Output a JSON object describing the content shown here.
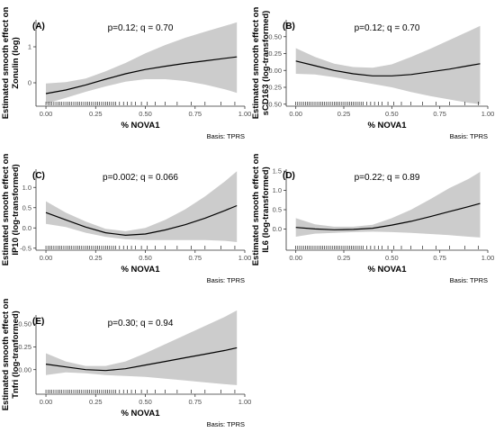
{
  "colors": {
    "band": "#cccccc",
    "line": "#000000",
    "axis": "#333333",
    "rug": "#000000"
  },
  "chart_data": [
    {
      "type": "line",
      "panel_label": "(A)",
      "annotation": "p=0.12; q = 0.70",
      "xlabel": "% NOVA1",
      "ylabel_lines": [
        "Estimated smooth effect on",
        "Zonulin (log)"
      ],
      "caption": "Basis: TPRS",
      "xlim": [
        -0.05,
        1.0
      ],
      "ylim": [
        -0.65,
        1.75
      ],
      "x_ticks": [
        0.0,
        0.25,
        0.5,
        0.75,
        1.0
      ],
      "x_tick_labels": [
        "0.00",
        "0.25",
        "0.50",
        "0.75",
        "1.00"
      ],
      "y_ticks": [
        0,
        1
      ],
      "y_tick_labels": [
        "0",
        "1"
      ],
      "series": [
        {
          "x": [
            0.0,
            0.1,
            0.2,
            0.3,
            0.4,
            0.5,
            0.6,
            0.7,
            0.8,
            0.9,
            0.96
          ],
          "fit": [
            -0.3,
            -0.2,
            -0.06,
            0.1,
            0.25,
            0.37,
            0.46,
            0.54,
            0.61,
            0.68,
            0.72
          ],
          "lower": [
            -0.58,
            -0.42,
            -0.25,
            -0.1,
            0.03,
            0.1,
            0.1,
            0.05,
            -0.05,
            -0.18,
            -0.28
          ],
          "upper": [
            -0.02,
            0.02,
            0.12,
            0.32,
            0.55,
            0.82,
            1.05,
            1.25,
            1.42,
            1.58,
            1.68
          ]
        }
      ],
      "rug": [
        0.0,
        0.01,
        0.02,
        0.03,
        0.04,
        0.05,
        0.06,
        0.07,
        0.08,
        0.09,
        0.1,
        0.11,
        0.12,
        0.13,
        0.14,
        0.15,
        0.16,
        0.17,
        0.18,
        0.19,
        0.2,
        0.21,
        0.22,
        0.23,
        0.24,
        0.25,
        0.26,
        0.27,
        0.28,
        0.29,
        0.3,
        0.31,
        0.32,
        0.33,
        0.34,
        0.35,
        0.37,
        0.39,
        0.41,
        0.43,
        0.45,
        0.48,
        0.51,
        0.55,
        0.6,
        0.66,
        0.73,
        0.8,
        0.88,
        0.95
      ]
    },
    {
      "type": "line",
      "panel_label": "(B)",
      "annotation": "p=0.12; q = 0.70",
      "xlabel": "% NOVA1",
      "ylabel_lines": [
        "Estimated smooth effect on",
        "sCD163 (log-transformed)"
      ],
      "caption": "Basis: TPRS",
      "xlim": [
        -0.05,
        1.0
      ],
      "ylim": [
        -0.53,
        0.75
      ],
      "x_ticks": [
        0.0,
        0.25,
        0.5,
        0.75,
        1.0
      ],
      "x_tick_labels": [
        "0.00",
        "0.25",
        "0.50",
        "0.75",
        "1.00"
      ],
      "y_ticks": [
        -0.5,
        -0.25,
        0.0,
        0.25,
        0.5
      ],
      "y_tick_labels": [
        "-0.50",
        "-0.25",
        "0.00",
        "0.25",
        "0.50"
      ],
      "series": [
        {
          "x": [
            0.0,
            0.1,
            0.2,
            0.3,
            0.4,
            0.5,
            0.6,
            0.7,
            0.8,
            0.9,
            0.96
          ],
          "fit": [
            0.14,
            0.07,
            0.0,
            -0.05,
            -0.08,
            -0.08,
            -0.06,
            -0.02,
            0.02,
            0.07,
            0.1
          ],
          "lower": [
            -0.05,
            -0.06,
            -0.1,
            -0.15,
            -0.2,
            -0.25,
            -0.32,
            -0.38,
            -0.43,
            -0.48,
            -0.5
          ],
          "upper": [
            0.33,
            0.2,
            0.1,
            0.05,
            0.04,
            0.09,
            0.2,
            0.32,
            0.45,
            0.58,
            0.66
          ]
        }
      ],
      "rug": [
        0.0,
        0.01,
        0.02,
        0.03,
        0.04,
        0.05,
        0.06,
        0.07,
        0.08,
        0.09,
        0.1,
        0.11,
        0.12,
        0.13,
        0.14,
        0.15,
        0.16,
        0.17,
        0.18,
        0.19,
        0.2,
        0.21,
        0.22,
        0.23,
        0.24,
        0.25,
        0.26,
        0.27,
        0.28,
        0.29,
        0.3,
        0.31,
        0.32,
        0.33,
        0.34,
        0.35,
        0.37,
        0.39,
        0.41,
        0.43,
        0.45,
        0.48,
        0.51,
        0.55,
        0.6,
        0.66,
        0.73,
        0.8,
        0.88,
        0.95
      ]
    },
    {
      "type": "line",
      "panel_label": "(C)",
      "annotation": "p=0.002; q = 0.066",
      "xlabel": "% NOVA1",
      "ylabel_lines": [
        "Estimated smooth effect on",
        "IP10 (log-transformed)"
      ],
      "caption": "Basis: TPRS",
      "xlim": [
        -0.05,
        1.0
      ],
      "ylim": [
        -0.55,
        1.45
      ],
      "x_ticks": [
        0.0,
        0.25,
        0.5,
        0.75,
        1.0
      ],
      "x_tick_labels": [
        "0.00",
        "0.25",
        "0.50",
        "0.75",
        "1.00"
      ],
      "y_ticks": [
        -0.5,
        0.0,
        0.5,
        1.0
      ],
      "y_tick_labels": [
        "-0.5",
        "0.0",
        "0.5",
        "1.0"
      ],
      "series": [
        {
          "x": [
            0.0,
            0.1,
            0.2,
            0.3,
            0.4,
            0.5,
            0.6,
            0.7,
            0.8,
            0.9,
            0.96
          ],
          "fit": [
            0.38,
            0.2,
            0.02,
            -0.12,
            -0.18,
            -0.15,
            -0.05,
            0.08,
            0.24,
            0.43,
            0.55
          ],
          "lower": [
            0.1,
            0.02,
            -0.12,
            -0.22,
            -0.28,
            -0.3,
            -0.3,
            -0.3,
            -0.3,
            -0.32,
            -0.35
          ],
          "upper": [
            0.66,
            0.38,
            0.16,
            -0.02,
            -0.08,
            0.0,
            0.2,
            0.46,
            0.78,
            1.15,
            1.4
          ]
        }
      ],
      "rug": [
        0.0,
        0.01,
        0.02,
        0.03,
        0.04,
        0.05,
        0.06,
        0.07,
        0.08,
        0.09,
        0.1,
        0.11,
        0.12,
        0.13,
        0.14,
        0.15,
        0.16,
        0.17,
        0.18,
        0.19,
        0.2,
        0.21,
        0.22,
        0.23,
        0.24,
        0.25,
        0.26,
        0.27,
        0.28,
        0.29,
        0.3,
        0.31,
        0.32,
        0.33,
        0.34,
        0.35,
        0.37,
        0.39,
        0.41,
        0.43,
        0.45,
        0.48,
        0.51,
        0.55,
        0.6,
        0.66,
        0.73,
        0.8,
        0.88,
        0.95
      ]
    },
    {
      "type": "line",
      "panel_label": "(D)",
      "annotation": "p=0.22; q = 0.89",
      "xlabel": "% NOVA1",
      "ylabel_lines": [
        "Estimated smooth effect on",
        "IL6 (log-transformed)"
      ],
      "caption": "Basis: TPRS",
      "xlim": [
        -0.05,
        1.0
      ],
      "ylim": [
        -0.55,
        1.55
      ],
      "x_ticks": [
        0.0,
        0.25,
        0.5,
        0.75,
        1.0
      ],
      "x_tick_labels": [
        "0.00",
        "0.25",
        "0.50",
        "0.75",
        "1.00"
      ],
      "y_ticks": [
        0.0,
        0.5,
        1.0,
        1.5
      ],
      "y_tick_labels": [
        "0.0",
        "0.5",
        "1.0",
        "1.5"
      ],
      "series": [
        {
          "x": [
            0.0,
            0.1,
            0.2,
            0.3,
            0.4,
            0.5,
            0.6,
            0.7,
            0.8,
            0.9,
            0.96
          ],
          "fit": [
            0.04,
            0.0,
            -0.02,
            -0.01,
            0.02,
            0.1,
            0.2,
            0.32,
            0.45,
            0.58,
            0.66
          ],
          "lower": [
            -0.2,
            -0.12,
            -0.1,
            -0.08,
            -0.07,
            -0.08,
            -0.1,
            -0.13,
            -0.16,
            -0.2,
            -0.22
          ],
          "upper": [
            0.28,
            0.12,
            0.06,
            0.06,
            0.11,
            0.28,
            0.5,
            0.77,
            1.06,
            1.3,
            1.48
          ]
        }
      ],
      "rug": [
        0.0,
        0.01,
        0.02,
        0.03,
        0.04,
        0.05,
        0.06,
        0.07,
        0.08,
        0.09,
        0.1,
        0.11,
        0.12,
        0.13,
        0.14,
        0.15,
        0.16,
        0.17,
        0.18,
        0.19,
        0.2,
        0.21,
        0.22,
        0.23,
        0.24,
        0.25,
        0.26,
        0.27,
        0.28,
        0.29,
        0.3,
        0.31,
        0.32,
        0.33,
        0.34,
        0.35,
        0.37,
        0.39,
        0.41,
        0.43,
        0.45,
        0.48,
        0.51,
        0.55,
        0.6,
        0.66,
        0.73,
        0.8,
        0.88,
        0.95
      ]
    },
    {
      "type": "line",
      "panel_label": "(E)",
      "annotation": "p=0.30; q = 0.94",
      "xlabel": "% NOVA1",
      "ylabel_lines": [
        "Estimated smooth effect on",
        "Tnfri (log-tranformed)"
      ],
      "caption": "Basis: TPRS",
      "xlim": [
        -0.05,
        1.0
      ],
      "ylim": [
        -0.27,
        0.6
      ],
      "x_ticks": [
        0.0,
        0.25,
        0.5,
        0.75,
        1.0
      ],
      "x_tick_labels": [
        "0.00",
        "0.25",
        "0.50",
        "0.75",
        "1.00"
      ],
      "y_ticks": [
        0.0,
        0.25,
        0.5
      ],
      "y_tick_labels": [
        "0.00",
        "0.25",
        "0.50"
      ],
      "series": [
        {
          "x": [
            0.0,
            0.1,
            0.2,
            0.3,
            0.4,
            0.5,
            0.6,
            0.7,
            0.8,
            0.9,
            0.96
          ],
          "fit": [
            0.06,
            0.03,
            0.0,
            -0.01,
            0.01,
            0.05,
            0.09,
            0.13,
            0.17,
            0.21,
            0.24
          ],
          "lower": [
            -0.06,
            -0.03,
            -0.04,
            -0.06,
            -0.07,
            -0.08,
            -0.1,
            -0.12,
            -0.14,
            -0.16,
            -0.17
          ],
          "upper": [
            0.18,
            0.09,
            0.04,
            0.04,
            0.09,
            0.18,
            0.28,
            0.38,
            0.48,
            0.58,
            0.65
          ]
        }
      ],
      "rug": [
        0.0,
        0.01,
        0.02,
        0.03,
        0.04,
        0.05,
        0.06,
        0.07,
        0.08,
        0.09,
        0.1,
        0.11,
        0.12,
        0.13,
        0.14,
        0.15,
        0.16,
        0.17,
        0.18,
        0.19,
        0.2,
        0.21,
        0.22,
        0.23,
        0.24,
        0.25,
        0.26,
        0.27,
        0.28,
        0.29,
        0.3,
        0.31,
        0.32,
        0.33,
        0.34,
        0.35,
        0.37,
        0.39,
        0.41,
        0.43,
        0.45,
        0.48,
        0.51,
        0.55,
        0.6,
        0.66,
        0.73,
        0.8,
        0.88,
        0.95
      ]
    }
  ]
}
